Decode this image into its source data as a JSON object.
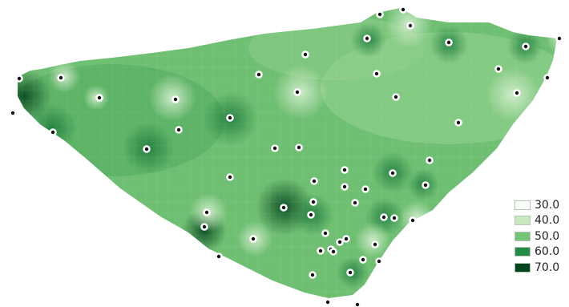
{
  "map": {
    "color_scale": [
      "#f7fcf5",
      "#c7e9c0",
      "#74c476",
      "#238b45",
      "#00441b"
    ],
    "sample_site_marker": "dot-with-ring"
  },
  "legend": {
    "entries": [
      {
        "label": "30.0",
        "color": "#f7fcf5"
      },
      {
        "label": "40.0",
        "color": "#c7e9c0"
      },
      {
        "label": "50.0",
        "color": "#74c476"
      },
      {
        "label": "60.0",
        "color": "#238b45"
      },
      {
        "label": "70.0",
        "color": "#00441b"
      }
    ]
  }
}
